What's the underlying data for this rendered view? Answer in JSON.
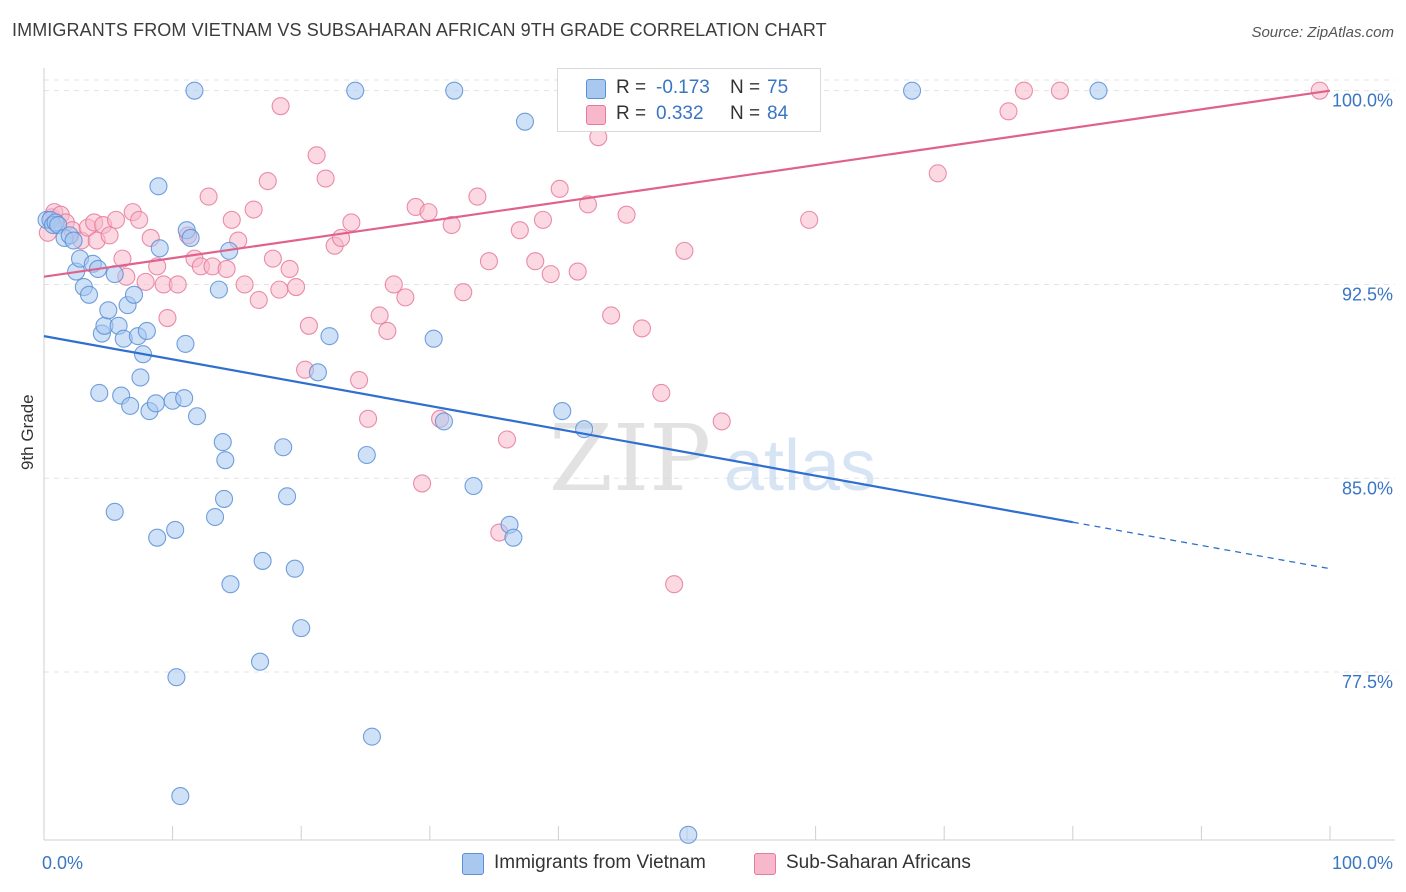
{
  "title": "IMMIGRANTS FROM VIETNAM VS SUBSAHARAN AFRICAN 9TH GRADE CORRELATION CHART",
  "source": "Source: ZipAtlas.com",
  "watermark": {
    "zip": "ZIP",
    "atlas": "atlas"
  },
  "colors": {
    "blue_fill": "#a8c8f0",
    "blue_stroke": "#5b8fd6",
    "blue_line": "#2f6fcf",
    "pink_fill": "#f7b8cb",
    "pink_stroke": "#e67a9b",
    "pink_line": "#e0628c",
    "axis_text": "#3a75c4",
    "grid": "#e3e3e3"
  },
  "legend": {
    "r_label": "R =",
    "n_label": "N =",
    "rows": [
      {
        "r": "-0.173",
        "n": "75"
      },
      {
        "r": "0.332",
        "n": "84"
      }
    ]
  },
  "bottom_legend": [
    "Immigrants from Vietnam",
    "Sub-Saharan Africans"
  ],
  "chart_data": {
    "type": "scatter",
    "title": "IMMIGRANTS FROM VIETNAM VS SUBSAHARAN AFRICAN 9TH GRADE CORRELATION CHART",
    "xlabel": "",
    "ylabel": "9th Grade",
    "xlim": [
      0,
      100
    ],
    "ylim": [
      71.0,
      100.8
    ],
    "x_tick_labels": [
      "0.0%",
      "100.0%"
    ],
    "y_ticks": [
      77.5,
      85.0,
      92.5,
      100.0
    ],
    "y_tick_labels": [
      "77.5%",
      "85.0%",
      "92.5%",
      "100.0%"
    ],
    "grid": true,
    "legend_position": "top-center",
    "series": [
      {
        "name": "Immigrants from Vietnam",
        "r": -0.173,
        "n": 75,
        "trend": {
          "x0": 0,
          "y0": 90.5,
          "x1": 80,
          "y1": 83.3,
          "dash_x1": 100,
          "dash_y1": 81.5
        },
        "points": [
          [
            0.2,
            95.0
          ],
          [
            0.5,
            95.0
          ],
          [
            0.7,
            94.8
          ],
          [
            0.9,
            94.9
          ],
          [
            1.1,
            94.8
          ],
          [
            1.6,
            94.3
          ],
          [
            2.0,
            94.4
          ],
          [
            2.3,
            94.2
          ],
          [
            2.5,
            93.0
          ],
          [
            2.8,
            93.5
          ],
          [
            3.1,
            92.4
          ],
          [
            3.5,
            92.1
          ],
          [
            3.8,
            93.3
          ],
          [
            4.2,
            93.1
          ],
          [
            4.5,
            90.6
          ],
          [
            4.7,
            90.9
          ],
          [
            4.3,
            88.3
          ],
          [
            5.0,
            91.5
          ],
          [
            5.5,
            92.9
          ],
          [
            5.8,
            90.9
          ],
          [
            6.2,
            90.4
          ],
          [
            6.5,
            91.7
          ],
          [
            7.0,
            92.1
          ],
          [
            7.3,
            90.5
          ],
          [
            7.5,
            88.9
          ],
          [
            7.7,
            89.8
          ],
          [
            8.0,
            90.7
          ],
          [
            6.0,
            88.2
          ],
          [
            6.7,
            87.8
          ],
          [
            8.2,
            87.6
          ],
          [
            8.7,
            87.9
          ],
          [
            9.0,
            93.9
          ],
          [
            11.1,
            94.6
          ],
          [
            11.4,
            94.3
          ],
          [
            10.0,
            88.0
          ],
          [
            10.9,
            88.1
          ],
          [
            11.9,
            87.4
          ],
          [
            8.9,
            96.3
          ],
          [
            14.4,
            93.8
          ],
          [
            13.6,
            92.3
          ],
          [
            14.0,
            84.2
          ],
          [
            13.3,
            83.5
          ],
          [
            10.2,
            83.0
          ],
          [
            8.8,
            82.7
          ],
          [
            5.5,
            83.7
          ],
          [
            13.9,
            86.4
          ],
          [
            14.1,
            85.7
          ],
          [
            18.6,
            86.2
          ],
          [
            18.9,
            84.3
          ],
          [
            19.5,
            81.5
          ],
          [
            17.0,
            81.8
          ],
          [
            14.5,
            80.9
          ],
          [
            20.0,
            79.2
          ],
          [
            16.8,
            77.9
          ],
          [
            10.3,
            77.3
          ],
          [
            21.3,
            89.1
          ],
          [
            22.2,
            90.5
          ],
          [
            25.1,
            85.9
          ],
          [
            30.3,
            90.4
          ],
          [
            31.1,
            87.2
          ],
          [
            33.4,
            84.7
          ],
          [
            36.2,
            83.2
          ],
          [
            36.5,
            82.7
          ],
          [
            37.4,
            98.8
          ],
          [
            40.3,
            87.6
          ],
          [
            42.0,
            86.9
          ],
          [
            11.7,
            100.0
          ],
          [
            24.2,
            100.0
          ],
          [
            31.9,
            100.0
          ],
          [
            67.5,
            100.0
          ],
          [
            82.0,
            100.0
          ],
          [
            25.5,
            75.0
          ],
          [
            10.6,
            72.7
          ],
          [
            50.1,
            71.2
          ],
          [
            11.0,
            90.2
          ]
        ]
      },
      {
        "name": "Sub-Saharan Africans",
        "r": 0.332,
        "n": 84,
        "trend": {
          "x0": 0,
          "y0": 92.8,
          "x1": 100,
          "y1": 100.0
        },
        "points": [
          [
            0.3,
            94.5
          ],
          [
            0.6,
            95.1
          ],
          [
            0.8,
            95.3
          ],
          [
            1.3,
            95.2
          ],
          [
            1.7,
            94.9
          ],
          [
            2.2,
            94.6
          ],
          [
            2.9,
            94.2
          ],
          [
            3.4,
            94.7
          ],
          [
            3.9,
            94.9
          ],
          [
            4.1,
            94.2
          ],
          [
            4.6,
            94.8
          ],
          [
            5.1,
            94.4
          ],
          [
            5.6,
            95.0
          ],
          [
            6.1,
            93.5
          ],
          [
            6.4,
            92.8
          ],
          [
            6.9,
            95.3
          ],
          [
            7.4,
            95.0
          ],
          [
            7.9,
            92.6
          ],
          [
            8.3,
            94.3
          ],
          [
            8.8,
            93.2
          ],
          [
            9.3,
            92.5
          ],
          [
            9.6,
            91.2
          ],
          [
            10.4,
            92.5
          ],
          [
            11.2,
            94.4
          ],
          [
            11.7,
            93.5
          ],
          [
            12.2,
            93.2
          ],
          [
            12.8,
            95.9
          ],
          [
            13.1,
            93.2
          ],
          [
            14.2,
            93.1
          ],
          [
            14.6,
            95.0
          ],
          [
            15.1,
            94.2
          ],
          [
            15.6,
            92.5
          ],
          [
            16.3,
            95.4
          ],
          [
            16.7,
            91.9
          ],
          [
            17.4,
            96.5
          ],
          [
            17.8,
            93.5
          ],
          [
            18.3,
            92.3
          ],
          [
            19.1,
            93.1
          ],
          [
            19.6,
            92.4
          ],
          [
            20.3,
            89.2
          ],
          [
            20.6,
            90.9
          ],
          [
            21.2,
            97.5
          ],
          [
            21.9,
            96.6
          ],
          [
            22.6,
            94.0
          ],
          [
            23.1,
            94.3
          ],
          [
            23.9,
            94.9
          ],
          [
            24.5,
            88.8
          ],
          [
            25.2,
            87.3
          ],
          [
            26.1,
            91.3
          ],
          [
            26.7,
            90.7
          ],
          [
            27.2,
            92.5
          ],
          [
            28.1,
            92.0
          ],
          [
            28.9,
            95.5
          ],
          [
            29.4,
            84.8
          ],
          [
            29.9,
            95.3
          ],
          [
            30.8,
            87.3
          ],
          [
            31.7,
            94.8
          ],
          [
            32.6,
            92.2
          ],
          [
            33.7,
            95.9
          ],
          [
            34.6,
            93.4
          ],
          [
            35.4,
            82.9
          ],
          [
            36.0,
            86.5
          ],
          [
            37.0,
            94.6
          ],
          [
            38.2,
            93.4
          ],
          [
            38.8,
            95.0
          ],
          [
            39.4,
            92.9
          ],
          [
            40.1,
            96.2
          ],
          [
            41.5,
            93.0
          ],
          [
            42.3,
            95.6
          ],
          [
            43.1,
            98.2
          ],
          [
            44.1,
            91.3
          ],
          [
            45.3,
            95.2
          ],
          [
            46.5,
            90.8
          ],
          [
            48.0,
            88.3
          ],
          [
            49.0,
            80.9
          ],
          [
            49.8,
            93.8
          ],
          [
            52.7,
            87.2
          ],
          [
            59.5,
            95.0
          ],
          [
            69.5,
            96.8
          ],
          [
            75.0,
            99.2
          ],
          [
            76.2,
            100.0
          ],
          [
            79.0,
            100.0
          ],
          [
            99.2,
            100.0
          ],
          [
            18.4,
            99.4
          ]
        ]
      }
    ]
  }
}
